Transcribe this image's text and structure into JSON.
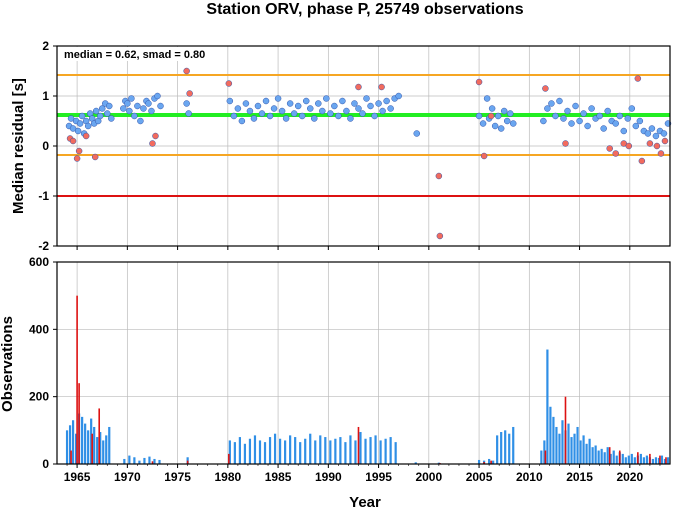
{
  "chart_data": [
    {
      "type": "scatter",
      "title": "Station ORV, phase P, 25749 observations",
      "xlabel": "",
      "ylabel": "Median residual [s]",
      "xlim": [
        1963,
        2024
      ],
      "ylim": [
        -2,
        2
      ],
      "yticks": [
        -2,
        -1,
        0,
        1,
        2
      ],
      "grid": true,
      "annotation": "median = 0.62, smad = 0.80",
      "reference_lines": [
        {
          "value": 0.62,
          "color": "#22ee22",
          "role": "median"
        },
        {
          "value": 1.42,
          "color": "#f6a623",
          "role": "median + smad"
        },
        {
          "value": -0.18,
          "color": "#f6a623",
          "role": "median - smad"
        },
        {
          "value": -1.0,
          "color": "#dd1111",
          "role": "limit"
        }
      ],
      "colors": {
        "normal": "#6aa6f0",
        "outlier": "#f26b5e",
        "edge": "#3355aa"
      },
      "series": [
        {
          "flag": "normal",
          "x": [
            1964.2,
            1964.4,
            1964.6,
            1964.9,
            1965.1,
            1965.3,
            1965.5,
            1965.7,
            1965.9,
            1966.1,
            1966.3,
            1966.5,
            1966.7,
            1966.9,
            1967.1,
            1967.3,
            1967.5,
            1967.8,
            1968.0,
            1968.2,
            1968.4,
            1969.6,
            1969.8,
            1970.0,
            1970.2,
            1970.4,
            1970.7,
            1971.0,
            1971.3,
            1971.6,
            1971.9,
            1972.1,
            1972.4,
            1972.7,
            1973.0,
            1973.3,
            1975.9,
            1976.1,
            1980.2,
            1980.6,
            1981.0,
            1981.4,
            1981.8,
            1982.2,
            1982.6,
            1983.0,
            1983.4,
            1983.8,
            1984.2,
            1984.6,
            1985.0,
            1985.4,
            1985.8,
            1986.2,
            1986.6,
            1987.0,
            1987.4,
            1987.8,
            1988.2,
            1988.6,
            1989.0,
            1989.4,
            1989.8,
            1990.2,
            1990.6,
            1991.0,
            1991.4,
            1991.8,
            1992.2,
            1992.6,
            1993.0,
            1993.4,
            1993.8,
            1994.2,
            1994.6,
            1995.0,
            1995.4,
            1995.8,
            1996.2,
            1996.6,
            1997.0,
            1998.8,
            2005.0,
            2005.4,
            2005.8,
            2006.0,
            2006.3,
            2006.6,
            2006.9,
            2007.2,
            2007.5,
            2007.8,
            2008.1,
            2008.4,
            2011.4,
            2011.8,
            2012.2,
            2012.6,
            2013.0,
            2013.4,
            2013.8,
            2014.2,
            2014.6,
            2015.0,
            2015.4,
            2015.8,
            2016.2,
            2016.6,
            2017.0,
            2017.4,
            2017.8,
            2018.2,
            2018.6,
            2019.0,
            2019.4,
            2019.8,
            2020.2,
            2020.6,
            2021.0,
            2021.4,
            2021.8,
            2022.2,
            2022.6,
            2023.0,
            2023.4,
            2023.8
          ],
          "y": [
            0.4,
            0.55,
            0.35,
            0.5,
            0.3,
            0.45,
            0.6,
            0.25,
            0.5,
            0.4,
            0.65,
            0.55,
            0.45,
            0.7,
            0.5,
            0.6,
            0.75,
            0.85,
            0.65,
            0.8,
            0.55,
            0.75,
            0.9,
            0.85,
            0.7,
            0.95,
            0.6,
            0.8,
            0.5,
            0.75,
            0.9,
            0.85,
            0.7,
            0.95,
            1.0,
            0.8,
            0.85,
            0.65,
            0.9,
            0.6,
            0.75,
            0.5,
            0.85,
            0.7,
            0.55,
            0.8,
            0.65,
            0.9,
            0.6,
            0.75,
            0.95,
            0.7,
            0.55,
            0.85,
            0.65,
            0.8,
            0.6,
            0.9,
            0.75,
            0.55,
            0.85,
            0.7,
            0.95,
            0.65,
            0.8,
            0.6,
            0.9,
            0.7,
            0.55,
            0.85,
            0.75,
            0.65,
            0.95,
            0.8,
            0.6,
            0.85,
            0.7,
            0.9,
            0.75,
            0.95,
            1.0,
            0.25,
            0.6,
            0.45,
            0.95,
            0.55,
            0.75,
            0.4,
            0.6,
            0.35,
            0.7,
            0.5,
            0.65,
            0.45,
            0.5,
            0.75,
            0.85,
            0.6,
            0.9,
            0.55,
            0.7,
            0.45,
            0.8,
            0.5,
            0.65,
            0.4,
            0.75,
            0.55,
            0.6,
            0.35,
            0.7,
            0.5,
            0.45,
            0.6,
            0.3,
            0.55,
            0.75,
            0.4,
            0.5,
            0.3,
            0.25,
            0.35,
            0.2,
            0.3,
            0.25,
            0.45
          ]
        },
        {
          "flag": "outlier",
          "x": [
            1964.3,
            1964.6,
            1965.0,
            1965.2,
            1965.9,
            1966.8,
            1972.5,
            1972.8,
            1975.9,
            1976.2,
            1980.1,
            1993.0,
            1995.3,
            2001.0,
            2001.1,
            2005.0,
            2005.5,
            2006.2,
            2011.6,
            2013.6,
            2018.0,
            2018.6,
            2019.4,
            2019.9,
            2020.8,
            2021.2,
            2022.0,
            2022.7,
            2023.1,
            2023.5
          ],
          "y": [
            0.15,
            0.1,
            -0.25,
            -0.1,
            0.2,
            -0.22,
            0.05,
            0.2,
            1.5,
            1.05,
            1.25,
            1.18,
            1.18,
            -0.6,
            -1.8,
            1.28,
            -0.2,
            0.6,
            1.15,
            0.05,
            -0.05,
            -0.15,
            0.05,
            0.0,
            1.35,
            -0.3,
            0.05,
            0.0,
            -0.15,
            0.1
          ]
        }
      ]
    },
    {
      "type": "bar",
      "title": "",
      "xlabel": "Year",
      "ylabel": "Observations",
      "xlim": [
        1963,
        2024
      ],
      "ylim": [
        0,
        600
      ],
      "yticks": [
        0,
        200,
        400,
        600
      ],
      "xticks": [
        1965,
        1970,
        1975,
        1980,
        1985,
        1990,
        1995,
        2000,
        2005,
        2010,
        2015,
        2020
      ],
      "grid": true,
      "colors": {
        "normal": "#2f8fe6",
        "outlier": "#dd1111"
      },
      "series": [
        {
          "flag": "normal",
          "x": [
            1964.0,
            1964.3,
            1964.6,
            1964.9,
            1965.2,
            1965.5,
            1965.8,
            1966.1,
            1966.4,
            1966.7,
            1967.0,
            1967.3,
            1967.6,
            1967.9,
            1968.2,
            1969.7,
            1970.2,
            1970.7,
            1971.2,
            1971.7,
            1972.2,
            1972.7,
            1973.2,
            1976.0,
            1980.2,
            1980.7,
            1981.2,
            1981.7,
            1982.2,
            1982.7,
            1983.2,
            1983.7,
            1984.2,
            1984.7,
            1985.2,
            1985.7,
            1986.2,
            1986.7,
            1987.2,
            1987.7,
            1988.2,
            1988.7,
            1989.2,
            1989.7,
            1990.2,
            1990.7,
            1991.2,
            1991.7,
            1992.2,
            1992.7,
            1993.2,
            1993.7,
            1994.2,
            1994.7,
            1995.2,
            1995.7,
            1996.2,
            1996.7,
            1998.7,
            2001.0,
            2005.0,
            2005.5,
            2006.0,
            2006.4,
            2006.8,
            2007.2,
            2007.6,
            2008.0,
            2008.4,
            2011.2,
            2011.5,
            2011.8,
            2012.1,
            2012.4,
            2012.7,
            2013.0,
            2013.3,
            2013.6,
            2013.9,
            2014.2,
            2014.5,
            2014.8,
            2015.1,
            2015.4,
            2015.7,
            2016.0,
            2016.3,
            2016.6,
            2016.9,
            2017.2,
            2017.5,
            2017.8,
            2018.1,
            2018.4,
            2018.7,
            2019.0,
            2019.3,
            2019.6,
            2019.9,
            2020.2,
            2020.5,
            2020.8,
            2021.1,
            2021.4,
            2021.7,
            2022.0,
            2022.3,
            2022.6,
            2022.9,
            2023.2,
            2023.5,
            2023.8
          ],
          "values": [
            100,
            115,
            130,
            90,
            150,
            140,
            120,
            100,
            135,
            110,
            80,
            95,
            70,
            85,
            110,
            15,
            25,
            20,
            10,
            18,
            22,
            15,
            12,
            20,
            70,
            65,
            80,
            60,
            75,
            85,
            70,
            65,
            80,
            90,
            75,
            70,
            85,
            80,
            65,
            75,
            90,
            70,
            85,
            80,
            70,
            75,
            80,
            65,
            85,
            70,
            95,
            75,
            80,
            85,
            70,
            75,
            80,
            65,
            5,
            4,
            12,
            10,
            15,
            10,
            85,
            95,
            100,
            90,
            110,
            40,
            70,
            340,
            170,
            140,
            110,
            90,
            130,
            100,
            120,
            80,
            90,
            110,
            70,
            85,
            60,
            75,
            50,
            55,
            40,
            45,
            35,
            50,
            30,
            40,
            25,
            35,
            30,
            20,
            25,
            30,
            20,
            25,
            30,
            20,
            25,
            20,
            15,
            20,
            18,
            25,
            15,
            20
          ]
        },
        {
          "flag": "outlier",
          "x": [
            1964.4,
            1965.0,
            1965.2,
            1966.5,
            1967.2,
            1972.5,
            1976.0,
            1980.1,
            1993.0,
            2001.1,
            2005.5,
            2006.2,
            2011.6,
            2013.6,
            2018.0,
            2019.0,
            2020.8,
            2022.0,
            2023.0,
            2023.6
          ],
          "values": [
            40,
            500,
            240,
            90,
            165,
            8,
            10,
            30,
            110,
            3,
            6,
            10,
            40,
            200,
            50,
            40,
            35,
            30,
            25,
            20
          ]
        }
      ]
    }
  ]
}
